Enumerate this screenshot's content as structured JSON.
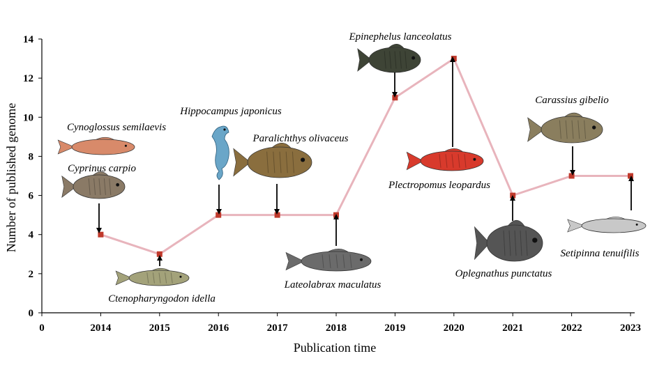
{
  "chart_data": {
    "type": "line",
    "xlabel": "Publication time",
    "ylabel": "Number of published genome",
    "ylim": [
      0,
      14
    ],
    "yticks": [
      0,
      2,
      4,
      6,
      8,
      10,
      12,
      14
    ],
    "x_ticks": [
      "0",
      "2014",
      "2015",
      "2016",
      "2017",
      "2018",
      "2019",
      "2020",
      "2021",
      "2022",
      "2023"
    ],
    "x": [
      2014,
      2015,
      2016,
      2017,
      2018,
      2019,
      2020,
      2021,
      2022,
      2023
    ],
    "values": [
      4,
      3,
      5,
      5,
      5,
      11,
      13,
      6,
      7,
      7
    ],
    "grid": false,
    "line_color": "#e8b4bc",
    "marker_color": "#c0392b",
    "annotations": [
      {
        "text": "Cynoglossus semilaevis",
        "year": 2014,
        "fish": "tongue-sole",
        "color": "#d88a6a"
      },
      {
        "text": "Cyprinus carpio",
        "year": 2014,
        "fish": "carp",
        "color": "#8a7a66"
      },
      {
        "text": "Ctenopharyngodon idella",
        "year": 2015,
        "fish": "grass-carp",
        "color": "#a3a27a"
      },
      {
        "text": "Hippocampus japonicus",
        "year": 2016,
        "fish": "seahorse",
        "color": "#6aa6c8"
      },
      {
        "text": "Paralichthys olivaceus",
        "year": 2017,
        "fish": "flounder",
        "color": "#8a6e3e"
      },
      {
        "text": "Lateolabrax maculatus",
        "year": 2018,
        "fish": "sea-bass",
        "color": "#6b6b6b"
      },
      {
        "text": "Epinephelus lanceolatus",
        "year": 2019,
        "fish": "grouper",
        "color": "#3e4436"
      },
      {
        "text": "Plectropomus leopardus",
        "year": 2020,
        "fish": "coral-trout",
        "color": "#d83a2c"
      },
      {
        "text": "Oplegnathus punctatus",
        "year": 2021,
        "fish": "knifejaw",
        "color": "#555555"
      },
      {
        "text": "Carassius gibelio",
        "year": 2022,
        "fish": "crucian-carp",
        "color": "#8a7e5e"
      },
      {
        "text": "Setipinna tenuifilis",
        "year": 2023,
        "fish": "anchovy",
        "color": "#c8c8c8"
      }
    ]
  }
}
